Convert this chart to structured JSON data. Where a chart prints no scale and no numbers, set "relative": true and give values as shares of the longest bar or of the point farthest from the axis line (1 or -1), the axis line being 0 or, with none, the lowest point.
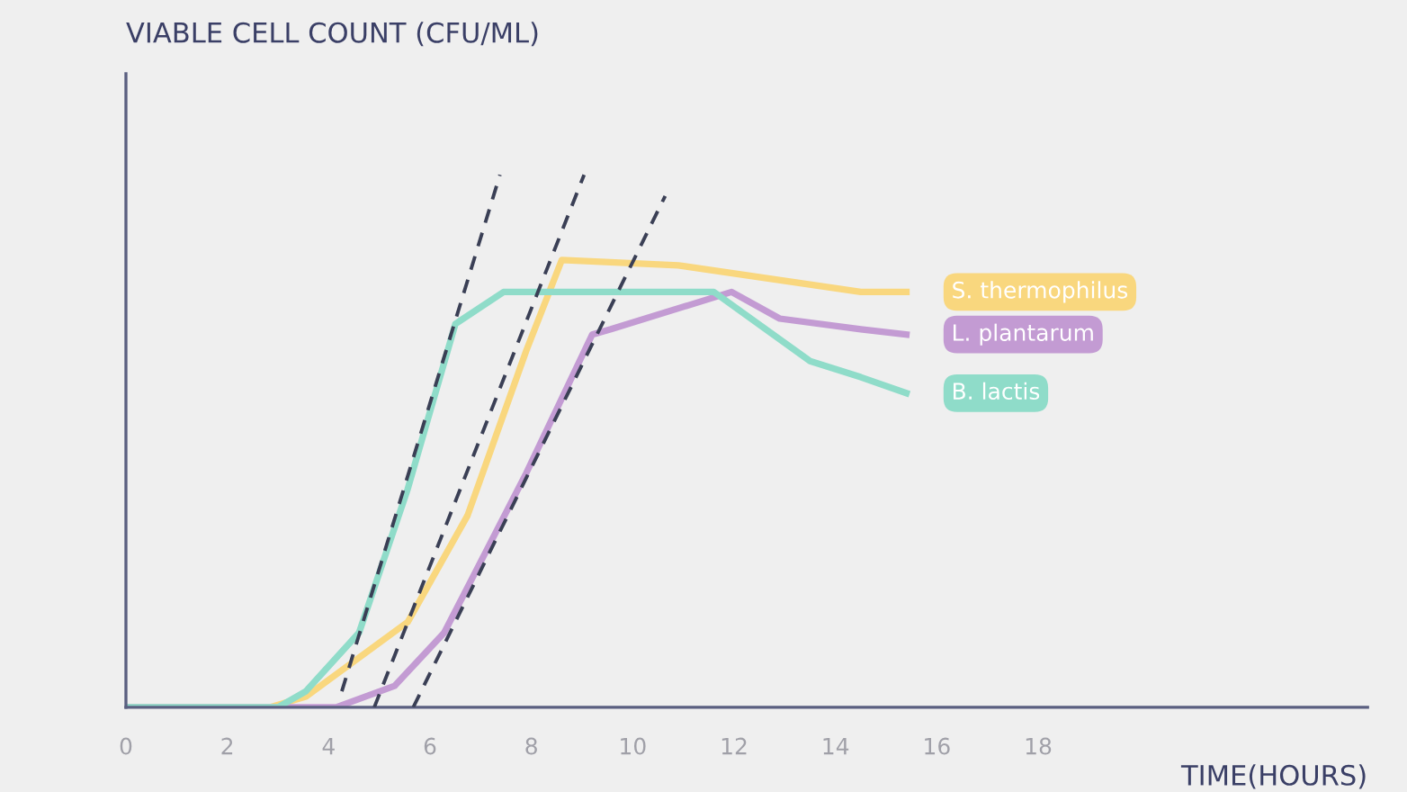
{
  "chart_data": {
    "type": "line",
    "relative": true,
    "ylabel": "VIABLE CELL COUNT (CFU/ML)",
    "xlabel": "TIME(HOURS)",
    "xlim": [
      0,
      24.5
    ],
    "xticks": [
      0,
      2,
      4,
      6,
      8,
      10,
      12,
      14,
      16,
      18
    ],
    "grid": false,
    "tick_labels": "x",
    "marker": "none",
    "series": [
      {
        "name": "S. thermophilus",
        "color": "#f9d77e",
        "x": [
          0,
          2.84,
          3.55,
          5.56,
          6.74,
          7.9,
          8.6,
          10.9,
          14.5,
          15.4
        ],
        "values": [
          0,
          0,
          0.02,
          0.16,
          0.36,
          0.67,
          0.84,
          0.83,
          0.78,
          0.78
        ]
      },
      {
        "name": "L. plantarum",
        "color": "#c39bd3",
        "x": [
          0,
          4.15,
          5.3,
          6.28,
          7.9,
          9.2,
          9.57,
          11.95,
          12.9,
          14.5,
          15.4
        ],
        "values": [
          0,
          0,
          0.04,
          0.14,
          0.44,
          0.7,
          0.71,
          0.78,
          0.73,
          0.71,
          0.7
        ]
      },
      {
        "name": "B. lactis",
        "color": "#8fdcc9",
        "x": [
          0,
          3.0,
          3.55,
          4.6,
          5.56,
          6.5,
          7.45,
          11.6,
          13.5,
          14.5,
          15.4
        ],
        "values": [
          0,
          0,
          0.03,
          0.14,
          0.41,
          0.72,
          0.78,
          0.78,
          0.65,
          0.62,
          0.59
        ]
      },
      {
        "type": "line",
        "line_style": "dashed",
        "color": "#3a3f55",
        "x": [
          4.26,
          7.38
        ],
        "values": [
          0.03,
          1.0
        ]
      },
      {
        "type": "line",
        "line_style": "dashed",
        "color": "#3a3f55",
        "x": [
          4.9,
          9.04
        ],
        "values": [
          0,
          1.0
        ]
      },
      {
        "type": "line",
        "line_style": "dashed",
        "color": "#3a3f55",
        "x": [
          5.67,
          10.64
        ],
        "values": [
          0,
          0.96
        ]
      }
    ]
  }
}
